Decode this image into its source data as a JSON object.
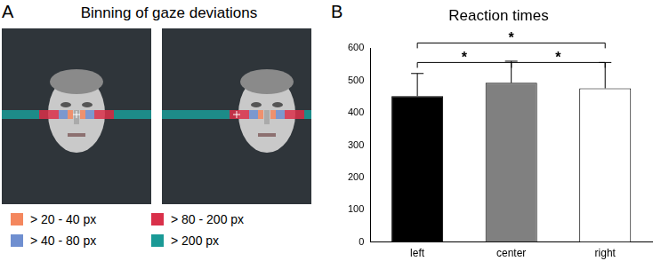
{
  "diagram": {
    "panel": "A",
    "title": "Binning of gaze deviations",
    "legend": [
      {
        "label": "> 20 - 40 px",
        "color": "#f4875e"
      },
      {
        "label": "> 80 - 200 px",
        "color": "#d9304a"
      },
      {
        "label": "> 40 - 80 px",
        "color": "#6f8fd0"
      },
      {
        "label": "> 200 px",
        "color": "#1a9a96"
      }
    ]
  },
  "chart_data": {
    "type": "bar",
    "panel": "B",
    "title": "Reaction times",
    "categories": [
      "left",
      "center",
      "right"
    ],
    "values": [
      452,
      493,
      476
    ],
    "errors": [
      70,
      67,
      80
    ],
    "colors": [
      "#000000",
      "#808080",
      "#ffffff"
    ],
    "ylim": [
      0,
      600
    ],
    "yticks": [
      0,
      100,
      200,
      300,
      400,
      500,
      600
    ],
    "grid": false,
    "significance": [
      {
        "between": [
          "left",
          "right"
        ],
        "label": "*"
      },
      {
        "between": [
          "left",
          "center"
        ],
        "label": "*"
      },
      {
        "between": [
          "center",
          "right"
        ],
        "label": "*"
      }
    ]
  }
}
